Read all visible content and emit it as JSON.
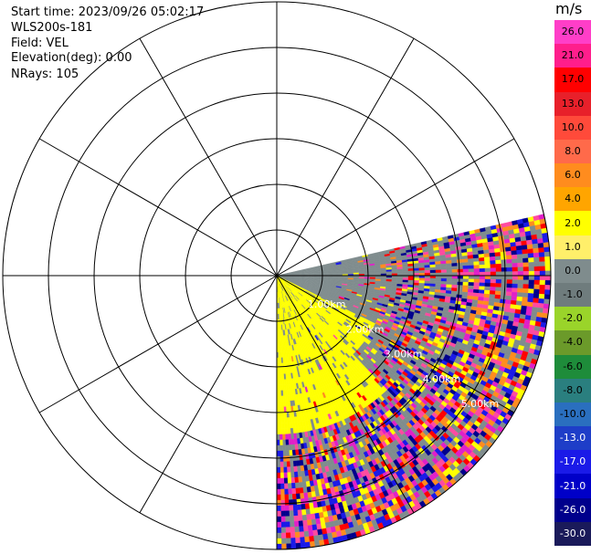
{
  "info": {
    "start_time": "Start time: 2023/09/26 05:02:17",
    "instrument": "WLS200s-181",
    "field": "Field: VEL",
    "elevation": "Elevation(deg): 0.00",
    "nrays": "NRays: 105"
  },
  "range_labels": [
    "1.00km",
    "2.00km",
    "3.00km",
    "4.00km",
    "5.00km"
  ],
  "colorbar": {
    "unit": "m/s",
    "ticks": [
      "26.0",
      "21.0",
      "17.0",
      "13.0",
      "10.0",
      "8.0",
      "6.0",
      "4.0",
      "2.0",
      "1.0",
      "0.0",
      "-1.0",
      "-2.0",
      "-4.0",
      "-6.0",
      "-8.0",
      "-10.0",
      "-13.0",
      "-17.0",
      "-21.0",
      "-26.0",
      "-30.0"
    ],
    "colors": [
      "#ff3ec8",
      "#ff1e8c",
      "#ff0000",
      "#e8202a",
      "#ff4a3a",
      "#ff6a4a",
      "#ff8c1e",
      "#ffa500",
      "#ffff00",
      "#ffef6a",
      "#7f8c8d",
      "#6f7c7d",
      "#9ad42a",
      "#6b9a2a",
      "#1e8c3a",
      "#2a7f7f",
      "#2a6fbf",
      "#1e3ec8",
      "#1a1ae8",
      "#0000c8",
      "#00008c",
      "#1a1a5a"
    ]
  },
  "palette": {
    "yellow": "#ffff00",
    "gray": "#7f8c8d",
    "pink": "#ff4aa0",
    "magenta": "#e020c8",
    "blue": "#1a1ae8",
    "navy": "#00008c",
    "red": "#ff0000",
    "orange": "#ff8c1e"
  }
}
